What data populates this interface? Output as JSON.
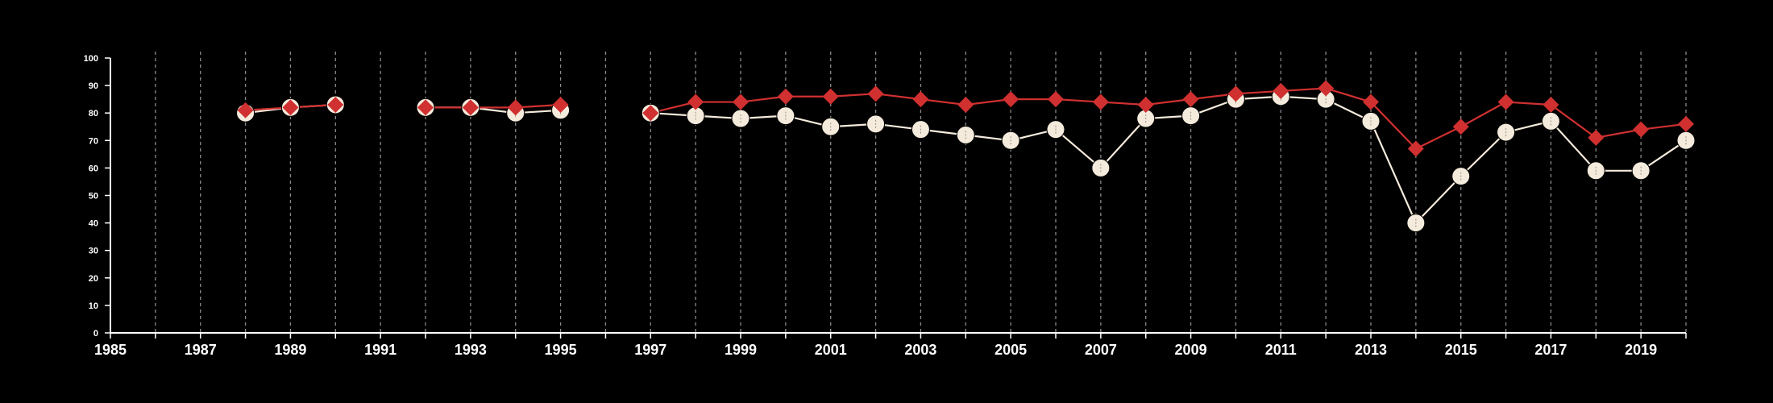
{
  "chart_data": {
    "type": "line",
    "xlim": [
      1985,
      2020
    ],
    "ylim": [
      0,
      100
    ],
    "x_ticks": [
      "1985",
      "1987",
      "1989",
      "1991",
      "1993",
      "1995",
      "1997",
      "1999",
      "2001",
      "2003",
      "2005",
      "2007",
      "2009",
      "2011",
      "2013",
      "2015",
      "2017",
      "2019"
    ],
    "y_ticks": [
      "0",
      "10",
      "20",
      "30",
      "40",
      "50",
      "60",
      "70",
      "80",
      "90",
      "100"
    ],
    "grid": "vertical dashed at every year",
    "background": "#000000",
    "series": [
      {
        "color": "#f5ebdc",
        "marker": "circle",
        "points": [
          [
            1988,
            80
          ],
          [
            1989,
            82
          ],
          [
            1990,
            83
          ],
          null,
          [
            1992,
            82
          ],
          [
            1993,
            82
          ],
          [
            1994,
            80
          ],
          [
            1995,
            81
          ],
          null,
          [
            1997,
            80
          ],
          [
            1998,
            79
          ],
          [
            1999,
            78
          ],
          [
            2000,
            79
          ],
          [
            2001,
            75
          ],
          [
            2002,
            76
          ],
          [
            2003,
            74
          ],
          [
            2004,
            72
          ],
          [
            2005,
            70
          ],
          [
            2006,
            74
          ],
          [
            2007,
            60
          ],
          [
            2008,
            78
          ],
          [
            2009,
            79
          ],
          [
            2010,
            85
          ],
          [
            2011,
            86
          ],
          [
            2012,
            85
          ],
          [
            2013,
            77
          ],
          [
            2014,
            40
          ],
          [
            2015,
            57
          ],
          [
            2016,
            73
          ],
          [
            2017,
            77
          ],
          [
            2018,
            59
          ],
          [
            2019,
            59
          ],
          [
            2020,
            70
          ]
        ]
      },
      {
        "color": "#d03030",
        "marker": "diamond",
        "points": [
          [
            1988,
            81
          ],
          [
            1989,
            82
          ],
          [
            1990,
            83
          ],
          null,
          [
            1992,
            82
          ],
          [
            1993,
            82
          ],
          [
            1994,
            82
          ],
          [
            1995,
            83
          ],
          null,
          [
            1997,
            80
          ],
          [
            1998,
            84
          ],
          [
            1999,
            84
          ],
          [
            2000,
            86
          ],
          [
            2001,
            86
          ],
          [
            2002,
            87
          ],
          [
            2003,
            85
          ],
          [
            2004,
            83
          ],
          [
            2005,
            85
          ],
          [
            2006,
            85
          ],
          [
            2007,
            84
          ],
          [
            2008,
            83
          ],
          [
            2009,
            85
          ],
          [
            2010,
            87
          ],
          [
            2011,
            88
          ],
          [
            2012,
            89
          ],
          [
            2013,
            84
          ],
          [
            2014,
            67
          ],
          [
            2015,
            75
          ],
          [
            2016,
            84
          ],
          [
            2017,
            83
          ],
          [
            2018,
            71
          ],
          [
            2019,
            74
          ],
          [
            2020,
            76
          ]
        ]
      }
    ]
  }
}
